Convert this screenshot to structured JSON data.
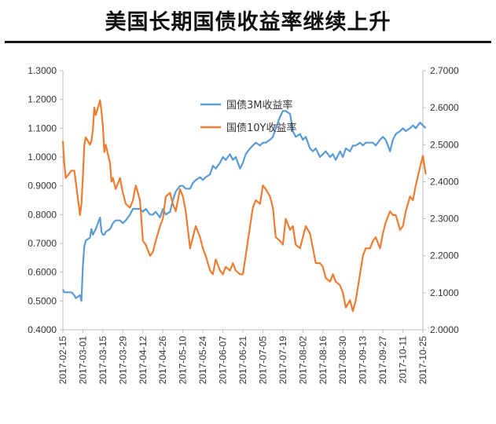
{
  "title": "美国长期国债收益率继续上升",
  "chart_data": {
    "type": "line",
    "title": "美国长期国债收益率继续上升",
    "xlabel": "",
    "ylabel": "",
    "x_ticks": [
      "2017-02-15",
      "2017-03-01",
      "2017-03-15",
      "2017-03-29",
      "2017-04-12",
      "2017-04-26",
      "2017-05-10",
      "2017-05-24",
      "2017-06-07",
      "2017-06-21",
      "2017-07-05",
      "2017-07-19",
      "2017-08-02",
      "2017-08-16",
      "2017-08-30",
      "2017-09-13",
      "2017-09-27",
      "2017-10-11",
      "2017-10-25"
    ],
    "y_left": {
      "range": [
        0.4,
        1.3
      ],
      "ticks": [
        "0.4000",
        "0.5000",
        "0.6000",
        "0.7000",
        "0.8000",
        "0.9000",
        "1.0000",
        "1.1000",
        "1.2000",
        "1.3000"
      ]
    },
    "y_right": {
      "range": [
        2.0,
        2.7
      ],
      "ticks": [
        "2.0000",
        "2.1000",
        "2.2000",
        "2.3000",
        "2.4000",
        "2.5000",
        "2.6000",
        "2.7000"
      ]
    },
    "grid": false,
    "legend": "top-center",
    "series": [
      {
        "name": "国债3M收益率",
        "axis": "left",
        "color": "#5B9BD5",
        "points": [
          [
            "2017-02-15",
            0.54
          ],
          [
            "2017-02-16",
            0.53
          ],
          [
            "2017-02-21",
            0.53
          ],
          [
            "2017-02-23",
            0.52
          ],
          [
            "2017-02-24",
            0.51
          ],
          [
            "2017-02-27",
            0.52
          ],
          [
            "2017-02-28",
            0.5
          ],
          [
            "2017-03-01",
            0.62
          ],
          [
            "2017-03-02",
            0.69
          ],
          [
            "2017-03-03",
            0.71
          ],
          [
            "2017-03-06",
            0.72
          ],
          [
            "2017-03-07",
            0.75
          ],
          [
            "2017-03-08",
            0.73
          ],
          [
            "2017-03-09",
            0.74
          ],
          [
            "2017-03-10",
            0.75
          ],
          [
            "2017-03-13",
            0.79
          ],
          [
            "2017-03-14",
            0.74
          ],
          [
            "2017-03-15",
            0.73
          ],
          [
            "2017-03-16",
            0.73
          ],
          [
            "2017-03-17",
            0.74
          ],
          [
            "2017-03-20",
            0.75
          ],
          [
            "2017-03-21",
            0.76
          ],
          [
            "2017-03-22",
            0.77
          ],
          [
            "2017-03-24",
            0.78
          ],
          [
            "2017-03-27",
            0.78
          ],
          [
            "2017-03-29",
            0.77
          ],
          [
            "2017-03-31",
            0.78
          ],
          [
            "2017-04-03",
            0.8
          ],
          [
            "2017-04-05",
            0.82
          ],
          [
            "2017-04-07",
            0.82
          ],
          [
            "2017-04-10",
            0.82
          ],
          [
            "2017-04-12",
            0.81
          ],
          [
            "2017-04-14",
            0.82
          ],
          [
            "2017-04-17",
            0.8
          ],
          [
            "2017-04-19",
            0.8
          ],
          [
            "2017-04-21",
            0.81
          ],
          [
            "2017-04-24",
            0.79
          ],
          [
            "2017-04-26",
            0.82
          ],
          [
            "2017-04-28",
            0.8
          ],
          [
            "2017-05-01",
            0.81
          ],
          [
            "2017-05-03",
            0.85
          ],
          [
            "2017-05-05",
            0.88
          ],
          [
            "2017-05-08",
            0.9
          ],
          [
            "2017-05-10",
            0.9
          ],
          [
            "2017-05-12",
            0.89
          ],
          [
            "2017-05-15",
            0.89
          ],
          [
            "2017-05-17",
            0.91
          ],
          [
            "2017-05-19",
            0.92
          ],
          [
            "2017-05-22",
            0.93
          ],
          [
            "2017-05-24",
            0.92
          ],
          [
            "2017-05-26",
            0.93
          ],
          [
            "2017-05-29",
            0.94
          ],
          [
            "2017-05-31",
            0.97
          ],
          [
            "2017-06-02",
            0.96
          ],
          [
            "2017-06-05",
            0.98
          ],
          [
            "2017-06-07",
            1.0
          ],
          [
            "2017-06-09",
            0.99
          ],
          [
            "2017-06-12",
            1.01
          ],
          [
            "2017-06-14",
            0.99
          ],
          [
            "2017-06-16",
            1.0
          ],
          [
            "2017-06-19",
            0.96
          ],
          [
            "2017-06-21",
            0.98
          ],
          [
            "2017-06-23",
            1.01
          ],
          [
            "2017-06-26",
            1.03
          ],
          [
            "2017-06-28",
            1.04
          ],
          [
            "2017-06-30",
            1.05
          ],
          [
            "2017-07-03",
            1.04
          ],
          [
            "2017-07-05",
            1.05
          ],
          [
            "2017-07-07",
            1.05
          ],
          [
            "2017-07-10",
            1.06
          ],
          [
            "2017-07-12",
            1.07
          ],
          [
            "2017-07-14",
            1.1
          ],
          [
            "2017-07-17",
            1.14
          ],
          [
            "2017-07-19",
            1.16
          ],
          [
            "2017-07-21",
            1.16
          ],
          [
            "2017-07-24",
            1.15
          ],
          [
            "2017-07-26",
            1.09
          ],
          [
            "2017-07-28",
            1.07
          ],
          [
            "2017-07-31",
            1.08
          ],
          [
            "2017-08-02",
            1.06
          ],
          [
            "2017-08-04",
            1.07
          ],
          [
            "2017-08-07",
            1.03
          ],
          [
            "2017-08-09",
            1.02
          ],
          [
            "2017-08-11",
            1.03
          ],
          [
            "2017-08-14",
            1.0
          ],
          [
            "2017-08-16",
            1.01
          ],
          [
            "2017-08-18",
            1.02
          ],
          [
            "2017-08-21",
            1.0
          ],
          [
            "2017-08-23",
            1.01
          ],
          [
            "2017-08-25",
            0.99
          ],
          [
            "2017-08-28",
            1.02
          ],
          [
            "2017-08-30",
            1.0
          ],
          [
            "2017-09-01",
            1.03
          ],
          [
            "2017-09-04",
            1.02
          ],
          [
            "2017-09-06",
            1.04
          ],
          [
            "2017-09-08",
            1.04
          ],
          [
            "2017-09-11",
            1.05
          ],
          [
            "2017-09-13",
            1.04
          ],
          [
            "2017-09-15",
            1.05
          ],
          [
            "2017-09-18",
            1.05
          ],
          [
            "2017-09-20",
            1.05
          ],
          [
            "2017-09-22",
            1.04
          ],
          [
            "2017-09-25",
            1.06
          ],
          [
            "2017-09-27",
            1.07
          ],
          [
            "2017-09-29",
            1.06
          ],
          [
            "2017-10-02",
            1.02
          ],
          [
            "2017-10-04",
            1.06
          ],
          [
            "2017-10-06",
            1.08
          ],
          [
            "2017-10-09",
            1.09
          ],
          [
            "2017-10-11",
            1.1
          ],
          [
            "2017-10-13",
            1.09
          ],
          [
            "2017-10-16",
            1.1
          ],
          [
            "2017-10-18",
            1.11
          ],
          [
            "2017-10-20",
            1.1
          ],
          [
            "2017-10-23",
            1.12
          ],
          [
            "2017-10-25",
            1.11
          ],
          [
            "2017-10-27",
            1.1
          ]
        ]
      },
      {
        "name": "国债10Y收益率",
        "axis": "right",
        "color": "#ED7D31",
        "points": [
          [
            "2017-02-15",
            2.51
          ],
          [
            "2017-02-16",
            2.45
          ],
          [
            "2017-02-17",
            2.41
          ],
          [
            "2017-02-21",
            2.43
          ],
          [
            "2017-02-23",
            2.43
          ],
          [
            "2017-02-24",
            2.4
          ],
          [
            "2017-02-27",
            2.31
          ],
          [
            "2017-02-28",
            2.34
          ],
          [
            "2017-03-01",
            2.41
          ],
          [
            "2017-03-02",
            2.5
          ],
          [
            "2017-03-03",
            2.52
          ],
          [
            "2017-03-06",
            2.5
          ],
          [
            "2017-03-07",
            2.51
          ],
          [
            "2017-03-08",
            2.54
          ],
          [
            "2017-03-09",
            2.6
          ],
          [
            "2017-03-10",
            2.58
          ],
          [
            "2017-03-13",
            2.62
          ],
          [
            "2017-03-14",
            2.59
          ],
          [
            "2017-03-15",
            2.55
          ],
          [
            "2017-03-16",
            2.48
          ],
          [
            "2017-03-17",
            2.5
          ],
          [
            "2017-03-20",
            2.45
          ],
          [
            "2017-03-21",
            2.4
          ],
          [
            "2017-03-22",
            2.41
          ],
          [
            "2017-03-24",
            2.38
          ],
          [
            "2017-03-27",
            2.41
          ],
          [
            "2017-03-29",
            2.37
          ],
          [
            "2017-03-31",
            2.34
          ],
          [
            "2017-04-03",
            2.33
          ],
          [
            "2017-04-05",
            2.35
          ],
          [
            "2017-04-07",
            2.39
          ],
          [
            "2017-04-10",
            2.35
          ],
          [
            "2017-04-12",
            2.24
          ],
          [
            "2017-04-14",
            2.23
          ],
          [
            "2017-04-17",
            2.2
          ],
          [
            "2017-04-19",
            2.21
          ],
          [
            "2017-04-21",
            2.24
          ],
          [
            "2017-04-24",
            2.28
          ],
          [
            "2017-04-26",
            2.3
          ],
          [
            "2017-04-28",
            2.36
          ],
          [
            "2017-05-01",
            2.37
          ],
          [
            "2017-05-03",
            2.34
          ],
          [
            "2017-05-05",
            2.32
          ],
          [
            "2017-05-08",
            2.38
          ],
          [
            "2017-05-10",
            2.36
          ],
          [
            "2017-05-12",
            2.32
          ],
          [
            "2017-05-15",
            2.22
          ],
          [
            "2017-05-17",
            2.25
          ],
          [
            "2017-05-19",
            2.28
          ],
          [
            "2017-05-22",
            2.25
          ],
          [
            "2017-05-24",
            2.22
          ],
          [
            "2017-05-26",
            2.2
          ],
          [
            "2017-05-29",
            2.16
          ],
          [
            "2017-05-31",
            2.15
          ],
          [
            "2017-06-02",
            2.19
          ],
          [
            "2017-06-05",
            2.16
          ],
          [
            "2017-06-07",
            2.15
          ],
          [
            "2017-06-09",
            2.17
          ],
          [
            "2017-06-12",
            2.16
          ],
          [
            "2017-06-14",
            2.18
          ],
          [
            "2017-06-16",
            2.16
          ],
          [
            "2017-06-19",
            2.15
          ],
          [
            "2017-06-21",
            2.15
          ],
          [
            "2017-06-23",
            2.2
          ],
          [
            "2017-06-26",
            2.28
          ],
          [
            "2017-06-28",
            2.33
          ],
          [
            "2017-06-30",
            2.35
          ],
          [
            "2017-07-03",
            2.34
          ],
          [
            "2017-07-05",
            2.39
          ],
          [
            "2017-07-07",
            2.38
          ],
          [
            "2017-07-10",
            2.36
          ],
          [
            "2017-07-12",
            2.33
          ],
          [
            "2017-07-14",
            2.25
          ],
          [
            "2017-07-17",
            2.24
          ],
          [
            "2017-07-19",
            2.23
          ],
          [
            "2017-07-21",
            2.3
          ],
          [
            "2017-07-24",
            2.27
          ],
          [
            "2017-07-26",
            2.28
          ],
          [
            "2017-07-28",
            2.23
          ],
          [
            "2017-07-31",
            2.22
          ],
          [
            "2017-08-02",
            2.25
          ],
          [
            "2017-08-04",
            2.28
          ],
          [
            "2017-08-07",
            2.26
          ],
          [
            "2017-08-09",
            2.22
          ],
          [
            "2017-08-11",
            2.18
          ],
          [
            "2017-08-14",
            2.18
          ],
          [
            "2017-08-16",
            2.17
          ],
          [
            "2017-08-18",
            2.14
          ],
          [
            "2017-08-21",
            2.13
          ],
          [
            "2017-08-23",
            2.15
          ],
          [
            "2017-08-25",
            2.13
          ],
          [
            "2017-08-28",
            2.12
          ],
          [
            "2017-08-30",
            2.1
          ],
          [
            "2017-09-01",
            2.06
          ],
          [
            "2017-09-04",
            2.08
          ],
          [
            "2017-09-06",
            2.05
          ],
          [
            "2017-09-08",
            2.08
          ],
          [
            "2017-09-11",
            2.15
          ],
          [
            "2017-09-13",
            2.2
          ],
          [
            "2017-09-15",
            2.22
          ],
          [
            "2017-09-18",
            2.22
          ],
          [
            "2017-09-20",
            2.24
          ],
          [
            "2017-09-22",
            2.25
          ],
          [
            "2017-09-25",
            2.22
          ],
          [
            "2017-09-27",
            2.26
          ],
          [
            "2017-09-29",
            2.29
          ],
          [
            "2017-10-02",
            2.32
          ],
          [
            "2017-10-04",
            2.31
          ],
          [
            "2017-10-06",
            2.31
          ],
          [
            "2017-10-09",
            2.27
          ],
          [
            "2017-10-11",
            2.28
          ],
          [
            "2017-10-13",
            2.32
          ],
          [
            "2017-10-16",
            2.36
          ],
          [
            "2017-10-18",
            2.35
          ],
          [
            "2017-10-20",
            2.39
          ],
          [
            "2017-10-23",
            2.44
          ],
          [
            "2017-10-25",
            2.47
          ],
          [
            "2017-10-27",
            2.42
          ]
        ]
      }
    ]
  }
}
